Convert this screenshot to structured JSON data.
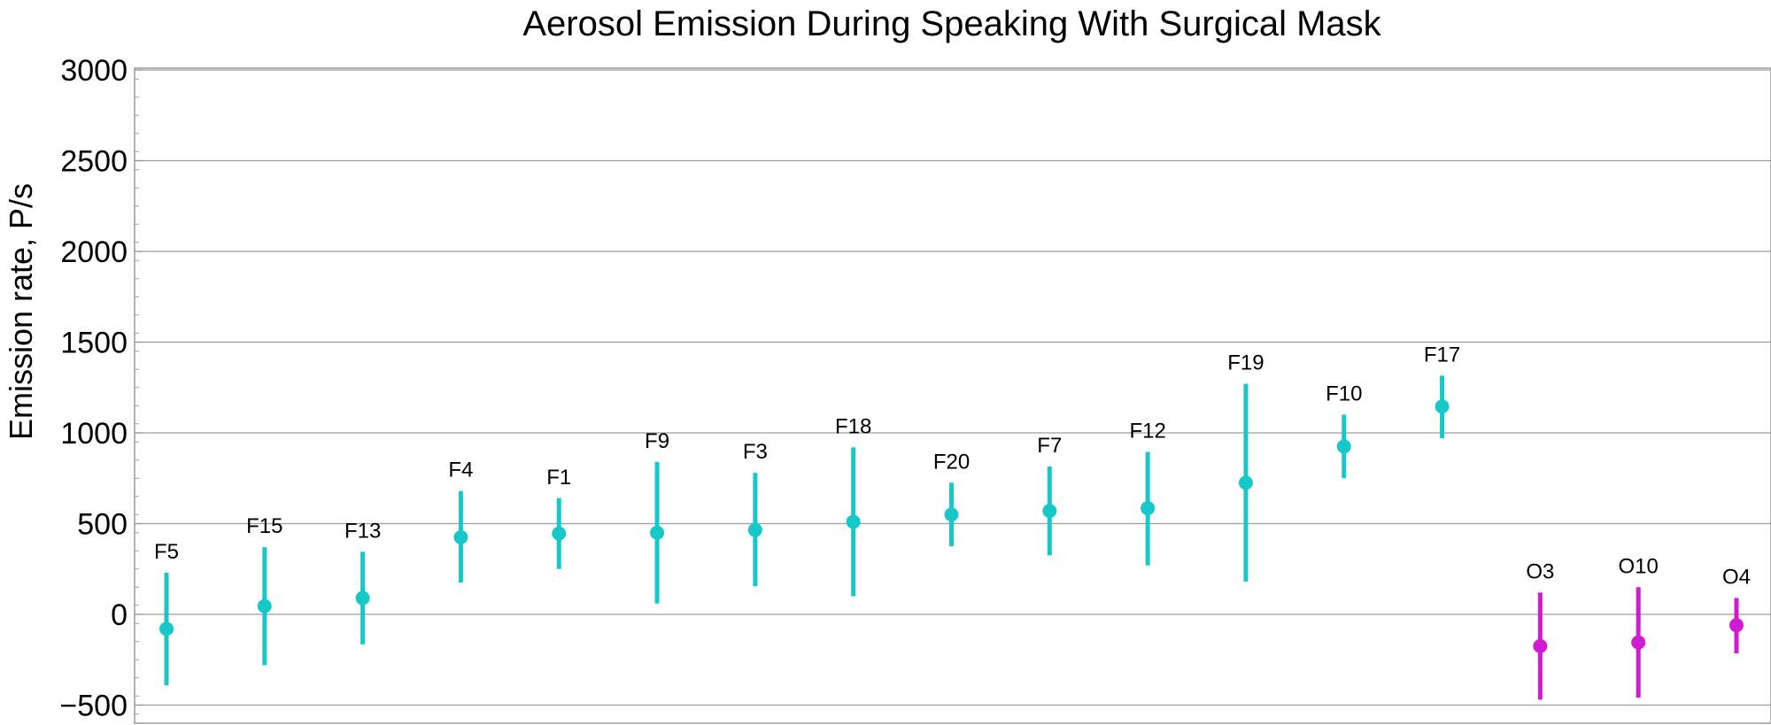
{
  "chart_data": {
    "type": "scatter",
    "title": "Aerosol Emission During Speaking With Surgical Mask",
    "xlabel": "",
    "ylabel": "Emission rate,  P/s",
    "ylim": [
      -600,
      3000
    ],
    "yticks": [
      3000,
      2500,
      2000,
      1500,
      1000,
      500,
      0,
      -500
    ],
    "yticks_labels": [
      "3000",
      "2500",
      "2000",
      "1500",
      "1000",
      "500",
      "0",
      "−500"
    ],
    "grid": "horizontal",
    "series": [
      {
        "color": "#17c8c8",
        "points": [
          {
            "label": "F5",
            "y": -80,
            "low": -390,
            "high": 230
          },
          {
            "label": "F15",
            "y": 45,
            "low": -280,
            "high": 370
          },
          {
            "label": "F13",
            "y": 90,
            "low": -165,
            "high": 345
          },
          {
            "label": "F4",
            "y": 425,
            "low": 175,
            "high": 680
          },
          {
            "label": "F1",
            "y": 445,
            "low": 250,
            "high": 640
          },
          {
            "label": "F9",
            "y": 450,
            "low": 60,
            "high": 840
          },
          {
            "label": "F3",
            "y": 465,
            "low": 155,
            "high": 780
          },
          {
            "label": "F18",
            "y": 510,
            "low": 100,
            "high": 920
          },
          {
            "label": "F20",
            "y": 550,
            "low": 375,
            "high": 725
          },
          {
            "label": "F7",
            "y": 570,
            "low": 325,
            "high": 815
          },
          {
            "label": "F12",
            "y": 585,
            "low": 270,
            "high": 895
          },
          {
            "label": "F19",
            "y": 725,
            "low": 180,
            "high": 1270
          },
          {
            "label": "F10",
            "y": 925,
            "low": 750,
            "high": 1100
          },
          {
            "label": "F17",
            "y": 1145,
            "low": 970,
            "high": 1315
          }
        ]
      },
      {
        "color": "#d21ad2",
        "points": [
          {
            "label": "O3",
            "y": -175,
            "low": -470,
            "high": 120
          },
          {
            "label": "O10",
            "y": -155,
            "low": -460,
            "high": 150
          },
          {
            "label": "O4",
            "y": -60,
            "low": -215,
            "high": 90
          }
        ]
      }
    ]
  }
}
